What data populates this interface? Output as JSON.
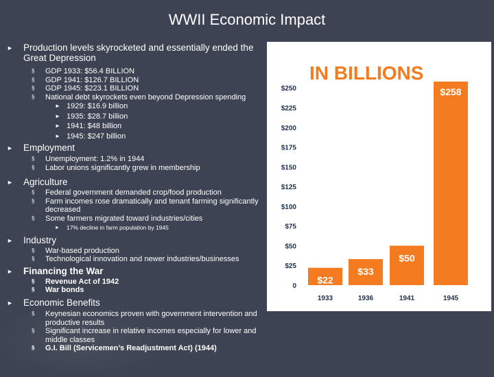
{
  "title": "WWII Economic Impact",
  "sections": [
    {
      "heading": "Production levels skyrocketed and essentially ended the Great Depression",
      "items": [
        {
          "text": "GDP 1933: $56.4 BILLION"
        },
        {
          "text": "GDP 1941: $126.7 BILLION"
        },
        {
          "text": "GDP 1945: $223.1 BILLION"
        },
        {
          "text": "National debt skyrockets even beyond Depression spending",
          "sub": [
            "1929: $16.9 billion",
            "1935: $28.7 billion",
            "1941: $48 billion",
            "1945: $247 billion"
          ]
        }
      ]
    },
    {
      "heading": "Employment",
      "items": [
        {
          "text": "Unemployment: 1.2% in 1944"
        },
        {
          "text": "Labor unions significantly grew in membership"
        }
      ]
    },
    {
      "heading": "Agriculture",
      "items": [
        {
          "text": "Federal government demanded crop/food production"
        },
        {
          "text": "Farm incomes rose dramatically and tenant farming significantly decreased"
        },
        {
          "text": "Some farmers migrated toward industries/cities",
          "sub": [
            "17% decline in farm population by 1945"
          ]
        }
      ]
    },
    {
      "heading": "Industry",
      "items": [
        {
          "text": "War-based production"
        },
        {
          "text": "Technological innovation and newer industries/businesses"
        }
      ]
    },
    {
      "heading": "Financing the War",
      "items": [
        {
          "text": "Revenue Act of 1942"
        },
        {
          "text": "War bonds"
        }
      ]
    },
    {
      "heading": "Economic Benefits",
      "items": [
        {
          "text": "Keynesian economics proven with government intervention and productive results"
        },
        {
          "text": "Significant increase in relative incomes especially for lower and middle classes"
        },
        {
          "text": "G.I. Bill (Servicemen’s Readjustment Act) (1944)"
        }
      ]
    }
  ],
  "chart_data": {
    "type": "bar",
    "title": "IN BILLIONS",
    "categories": [
      "1933",
      "1936",
      "1941",
      "1945"
    ],
    "values": [
      22,
      33,
      50,
      258
    ],
    "data_labels": [
      "$22",
      "$33",
      "$50",
      "$258"
    ],
    "y_ticks": [
      "0",
      "$25",
      "$50",
      "$75",
      "$100",
      "$125",
      "$150",
      "$175",
      "$200",
      "$225",
      "$250"
    ],
    "ylim": [
      0,
      258
    ],
    "bar_color": "#f47b20",
    "title_color": "#f47b20"
  }
}
